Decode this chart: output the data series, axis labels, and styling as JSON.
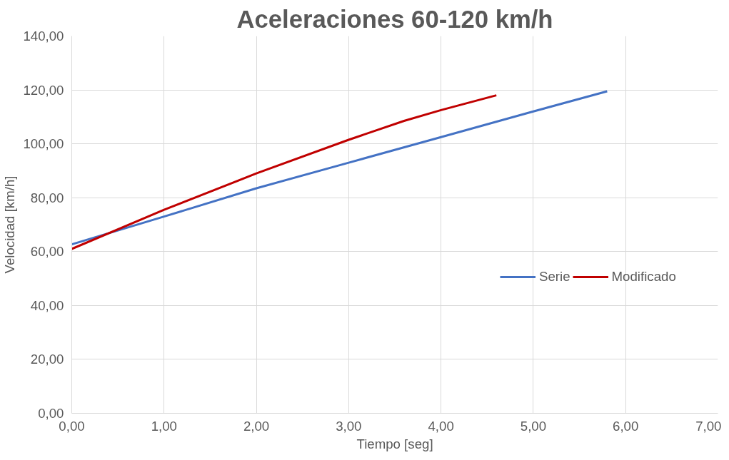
{
  "chart_data": {
    "type": "line",
    "title": "Aceleraciones 60-120 km/h",
    "xlabel": "Tiempo [seg]",
    "ylabel": "Velocidad [km/h]",
    "xlim": [
      0,
      7
    ],
    "ylim": [
      0,
      140
    ],
    "xticks": [
      {
        "value": 0,
        "label": "0,00"
      },
      {
        "value": 1,
        "label": "1,00"
      },
      {
        "value": 2,
        "label": "2,00"
      },
      {
        "value": 3,
        "label": "3,00"
      },
      {
        "value": 4,
        "label": "4,00"
      },
      {
        "value": 5,
        "label": "5,00"
      },
      {
        "value": 6,
        "label": "6,00"
      },
      {
        "value": 7,
        "label": "7,00"
      }
    ],
    "yticks": [
      {
        "value": 0,
        "label": "0,00"
      },
      {
        "value": 20,
        "label": "20,00"
      },
      {
        "value": 40,
        "label": "40,00"
      },
      {
        "value": 60,
        "label": "60,00"
      },
      {
        "value": 80,
        "label": "80,00"
      },
      {
        "value": 100,
        "label": "100,00"
      },
      {
        "value": 120,
        "label": "120,00"
      },
      {
        "value": 140,
        "label": "140,00"
      }
    ],
    "grid": true,
    "legend": "right",
    "marker": "none",
    "line_style": "solid",
    "series": [
      {
        "name": "Serie",
        "color": "#4472c4",
        "x": [
          0,
          1,
          2,
          3,
          4,
          5,
          5.8
        ],
        "values": [
          62.7,
          73,
          83.5,
          93,
          102.5,
          112,
          119.5
        ]
      },
      {
        "name": "Modificado",
        "color": "#c00000",
        "x": [
          0,
          1,
          2,
          3,
          3.6,
          4,
          4.6
        ],
        "values": [
          61,
          75.5,
          89,
          101.5,
          108.5,
          112.5,
          118
        ]
      }
    ]
  }
}
